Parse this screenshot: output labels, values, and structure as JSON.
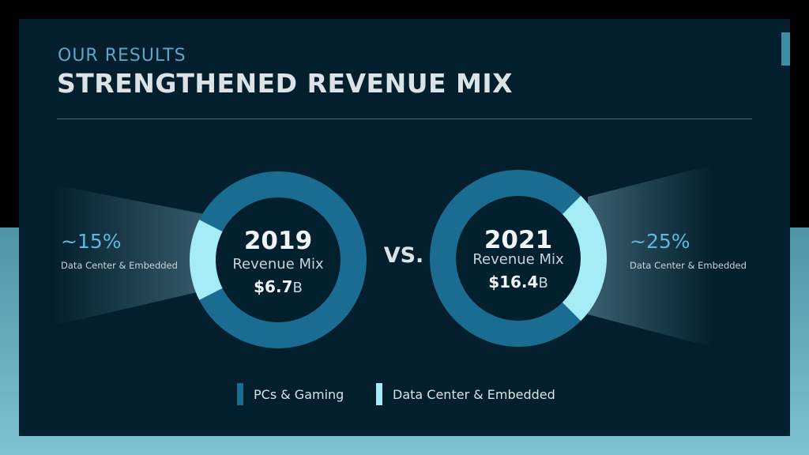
{
  "header": {
    "eyebrow": "OUR RESULTS",
    "title": "STRENGTHENED REVENUE MIX"
  },
  "vs_label": "VS.",
  "colors": {
    "pcs_gaming": "#1b6c91",
    "data_center_embedded": "#a6ecf7",
    "slide_bg": "#031e2c"
  },
  "chart_data": {
    "type": "pie",
    "series_names": [
      "PCs & Gaming",
      "Data Center & Embedded"
    ],
    "charts": [
      {
        "year": "2019",
        "label": "Revenue Mix",
        "total_prefix": "$6.7",
        "total_unit": "B",
        "callout_pct": "~15%",
        "callout_label": "Data Center & Embedded",
        "slices": [
          {
            "name": "PCs & Gaming",
            "value": 85
          },
          {
            "name": "Data Center & Embedded",
            "value": 15
          }
        ]
      },
      {
        "year": "2021",
        "label": "Revenue Mix",
        "total_prefix": "$16.4",
        "total_unit": "B",
        "callout_pct": "~25%",
        "callout_label": "Data Center & Embedded",
        "slices": [
          {
            "name": "PCs & Gaming",
            "value": 75
          },
          {
            "name": "Data Center & Embedded",
            "value": 25
          }
        ]
      }
    ],
    "legend": [
      "PCs & Gaming",
      "Data Center & Embedded"
    ]
  }
}
